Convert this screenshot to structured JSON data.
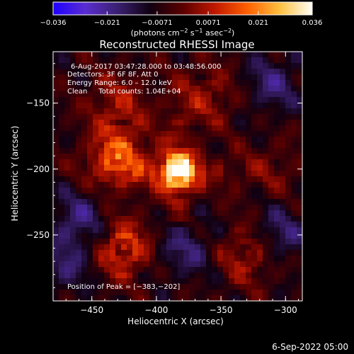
{
  "chart_data": {
    "type": "heatmap",
    "title": "Reconstructed RHESSI Image",
    "xlabel": "Heliocentric X (arcsec)",
    "ylabel": "Heliocentric Y (arcsec)",
    "xlim": [
      -480,
      -287
    ],
    "ylim": [
      -300,
      -111
    ],
    "x_ticks": [
      -450,
      -400,
      -350,
      -300
    ],
    "y_ticks": [
      -150,
      -200,
      -250
    ],
    "x_tick_labels": [
      "−450",
      "−400",
      "−350",
      "−300"
    ],
    "y_tick_labels": [
      "−150",
      "−200",
      "−250"
    ],
    "colorbar": {
      "min": -0.036,
      "max": 0.036,
      "ticks": [
        -0.036,
        -0.021,
        -0.0071,
        0.0071,
        0.021,
        0.036
      ],
      "tick_labels": [
        "−0.036",
        "−0.021",
        "−0.0071",
        "0.0071",
        "0.021",
        "0.036"
      ],
      "units_prefix": "(photons cm",
      "units_exp1": "−2",
      "units_mid": " s",
      "units_exp2": "−1",
      "units_mid2": " asec",
      "units_exp3": "−2",
      "units_suffix": ")",
      "stops": [
        "#1e00ff",
        "#5a2dd0",
        "#3a2070",
        "#100010",
        "#5a0000",
        "#c01800",
        "#ff6000",
        "#ffc040",
        "#fffff8"
      ]
    },
    "annotations": [
      "6‑Aug‑2017 03:47:28.000 to 03:48:56.000",
      "Detectors: 3F 6F 8F, Att 0",
      "Energy Range: 6.0 – 12.0 keV",
      "Clean     Total counts: 1.04E+04"
    ],
    "peak_label": "Position of Peak = [−383,−202]",
    "peak": [
      -383,
      -202
    ],
    "sources": [
      {
        "x": -383,
        "y": -202,
        "value": 0.036
      },
      {
        "x": -430,
        "y": -190,
        "value": 0.02
      },
      {
        "x": -425,
        "y": -260,
        "value": 0.018
      },
      {
        "x": -330,
        "y": -265,
        "value": 0.012
      },
      {
        "x": -430,
        "y": -150,
        "value": 0.011
      },
      {
        "x": -360,
        "y": -145,
        "value": 0.01
      },
      {
        "x": -310,
        "y": -200,
        "value": 0.005
      }
    ],
    "footer": "6‑Sep‑2022 05:00"
  }
}
